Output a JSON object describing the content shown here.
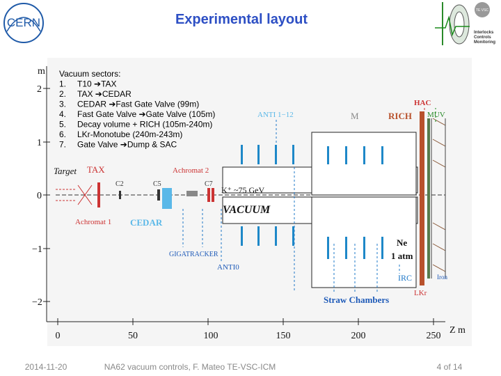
{
  "header": {
    "title": "Experimental layout",
    "logo_left": "CERN",
    "logo_right_badge": "TE VSC",
    "logo_right_lines": [
      "Interlocks",
      "Controls",
      "Monitoring"
    ]
  },
  "sectors": {
    "heading": "Vacuum sectors:",
    "items": [
      {
        "num": "1.",
        "text": "T10 ➔TAX"
      },
      {
        "num": "2.",
        "text": "TAX ➔CEDAR"
      },
      {
        "num": "3.",
        "text": "CEDAR ➔Fast Gate Valve (99m)"
      },
      {
        "num": "4.",
        "text": "Fast Gate Valve ➔Gate Valve (105m)"
      },
      {
        "num": "5.",
        "text": "Decay volume + RICH (105m-240m)"
      },
      {
        "num": "6.",
        "text": "LKr-Monotube (240m-243m)"
      },
      {
        "num": "7.",
        "text": "Gate Valve ➔Dump & SAC"
      }
    ]
  },
  "diagram": {
    "y_unit": "m",
    "y_labels": [
      "2",
      "1",
      "0",
      "−1",
      "−2"
    ],
    "x_labels": [
      "0",
      "50",
      "100",
      "150",
      "200",
      "250"
    ],
    "x_unit": "Z  m",
    "labels": {
      "target": "Target",
      "tax": "TAX",
      "achromat2": "Achromat 2",
      "c2": "C2",
      "c5": "C5",
      "c7": "C7",
      "beam": "K⁺ ~75 GeV",
      "vacuum": "VACUUM",
      "achromat1": "Achromat 1",
      "cedar": "CEDAR",
      "gigatracker": "GIGATRACKER",
      "anti0": "ANTI0",
      "anti": "ANTI 1−12",
      "m": "M",
      "rich": "RICH",
      "hac": "HAC",
      "muv": "MUV",
      "ne": "Ne",
      "atm": "1 atm",
      "irc": "IRC",
      "iron": "Iron",
      "lkr": "LKr",
      "straw": "Straw Chambers"
    }
  },
  "footer": {
    "date": "2014-11-20",
    "center": "NA62 vacuum controls, F. Mateo TE-VSC-ICM",
    "page": "4 of 14"
  }
}
